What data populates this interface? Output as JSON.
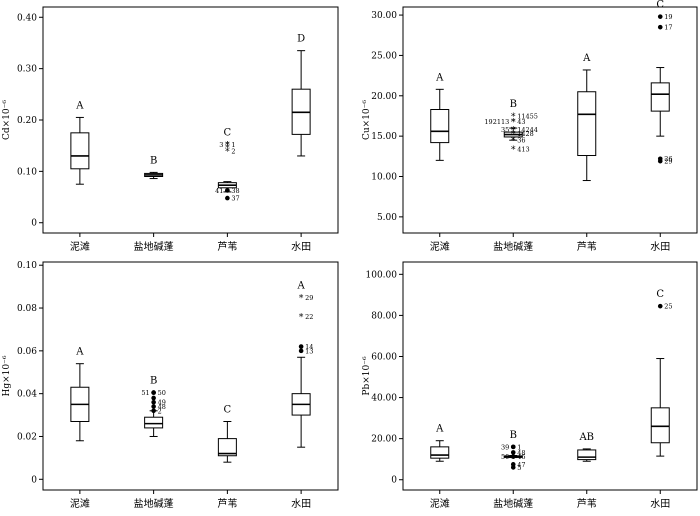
{
  "chart_data": [
    {
      "type": "box",
      "ylabel": "Cd×10⁻⁶",
      "ylim": [
        -0.02,
        0.42
      ],
      "yticks": [
        "0",
        "0.10",
        "0.20",
        "0.30",
        "0.40"
      ],
      "ytick_values": [
        0,
        0.1,
        0.2,
        0.3,
        0.4
      ],
      "categories": [
        "泥滩",
        "盐地碱蓬",
        "芦苇",
        "水田"
      ],
      "boxes": [
        {
          "group": "泥滩",
          "min": 0.075,
          "q1": 0.105,
          "median": 0.13,
          "q3": 0.175,
          "max": 0.205,
          "letter": "A"
        },
        {
          "group": "盐地碱蓬",
          "min": 0.086,
          "q1": 0.09,
          "median": 0.093,
          "q3": 0.096,
          "max": 0.098,
          "letter": "B"
        },
        {
          "group": "芦苇",
          "min": 0.06,
          "q1": 0.068,
          "median": 0.073,
          "q3": 0.078,
          "max": 0.08,
          "letter": "C"
        },
        {
          "group": "水田",
          "min": 0.13,
          "q1": 0.172,
          "median": 0.215,
          "q3": 0.26,
          "max": 0.335,
          "letter": "D"
        }
      ],
      "outliers": [
        {
          "group": "芦苇",
          "value": 0.152,
          "kind": "star",
          "label": "1"
        },
        {
          "group": "芦苇",
          "value": 0.152,
          "kind": "star",
          "label": "3"
        },
        {
          "group": "芦苇",
          "value": 0.146,
          "kind": "star",
          "label": ""
        },
        {
          "group": "芦苇",
          "value": 0.14,
          "kind": "star",
          "label": "2"
        },
        {
          "group": "芦苇",
          "value": 0.063,
          "kind": "dot",
          "label": "38"
        },
        {
          "group": "芦苇",
          "value": 0.063,
          "kind": "dot",
          "label": "41"
        },
        {
          "group": "芦苇",
          "value": 0.048,
          "kind": "dot",
          "label": "37"
        }
      ]
    },
    {
      "type": "box",
      "ylabel": "Cu×10⁻⁶",
      "ylim": [
        3.0,
        31.0
      ],
      "yticks": [
        "5.00",
        "10.00",
        "15.00",
        "20.00",
        "25.00",
        "30.00"
      ],
      "ytick_values": [
        5,
        10,
        15,
        20,
        25,
        30
      ],
      "categories": [
        "泥滩",
        "盐地碱蓬",
        "芦苇",
        "水田"
      ],
      "boxes": [
        {
          "group": "泥滩",
          "min": 12.0,
          "q1": 14.2,
          "median": 15.6,
          "q3": 18.3,
          "max": 20.8,
          "letter": "A"
        },
        {
          "group": "盐地碱蓬",
          "min": 14.5,
          "q1": 14.9,
          "median": 15.2,
          "q3": 15.5,
          "max": 16.0,
          "letter": "B"
        },
        {
          "group": "芦苇",
          "min": 9.5,
          "q1": 12.6,
          "median": 17.7,
          "q3": 20.5,
          "max": 23.2,
          "letter": "A"
        },
        {
          "group": "水田",
          "min": 15.0,
          "q1": 18.1,
          "median": 20.2,
          "q3": 21.6,
          "max": 23.5,
          "letter": "C"
        }
      ],
      "outliers": [
        {
          "group": "盐地碱蓬",
          "value": 17.5,
          "kind": "star",
          "label": "11455"
        },
        {
          "group": "盐地碱蓬",
          "value": 16.8,
          "kind": "star",
          "label": "43"
        },
        {
          "group": "盐地碱蓬",
          "value": 16.8,
          "kind": "star",
          "label": "192113"
        },
        {
          "group": "盐地碱蓬",
          "value": 15.8,
          "kind": "star",
          "label": "14244"
        },
        {
          "group": "盐地碱蓬",
          "value": 15.8,
          "kind": "star",
          "label": "35"
        },
        {
          "group": "盐地碱蓬",
          "value": 15.3,
          "kind": "star",
          "label": "1428"
        },
        {
          "group": "盐地碱蓬",
          "value": 14.5,
          "kind": "star",
          "label": "36"
        },
        {
          "group": "盐地碱蓬",
          "value": 13.4,
          "kind": "star",
          "label": "413"
        },
        {
          "group": "水田",
          "value": 29.8,
          "kind": "dot",
          "label": "19"
        },
        {
          "group": "水田",
          "value": 28.5,
          "kind": "dot",
          "label": "17"
        },
        {
          "group": "水田",
          "value": 12.2,
          "kind": "dot",
          "label": "26"
        },
        {
          "group": "水田",
          "value": 11.9,
          "kind": "dot",
          "label": "29"
        }
      ]
    },
    {
      "type": "box",
      "ylabel": "Hg×10⁻⁶",
      "ylim": [
        -0.005,
        0.1015
      ],
      "yticks": [
        "0",
        "0.02",
        "0.04",
        "0.06",
        "0.08",
        "0.10"
      ],
      "ytick_values": [
        0,
        0.02,
        0.04,
        0.06,
        0.08,
        0.1
      ],
      "categories": [
        "泥滩",
        "盐地碱蓬",
        "芦苇",
        "水田"
      ],
      "boxes": [
        {
          "group": "泥滩",
          "min": 0.018,
          "q1": 0.027,
          "median": 0.035,
          "q3": 0.043,
          "max": 0.054,
          "letter": "A"
        },
        {
          "group": "盐地碱蓬",
          "min": 0.02,
          "q1": 0.024,
          "median": 0.026,
          "q3": 0.029,
          "max": 0.032,
          "letter": "B"
        },
        {
          "group": "芦苇",
          "min": 0.008,
          "q1": 0.011,
          "median": 0.012,
          "q3": 0.019,
          "max": 0.027,
          "letter": "C"
        },
        {
          "group": "水田",
          "min": 0.015,
          "q1": 0.03,
          "median": 0.035,
          "q3": 0.04,
          "max": 0.057,
          "letter": "A"
        }
      ],
      "outliers": [
        {
          "group": "盐地碱蓬",
          "value": 0.0405,
          "kind": "dot",
          "label": "50"
        },
        {
          "group": "盐地碱蓬",
          "value": 0.0405,
          "kind": "dot",
          "label": "51"
        },
        {
          "group": "盐地碱蓬",
          "value": 0.038,
          "kind": "dot",
          "label": ""
        },
        {
          "group": "盐地碱蓬",
          "value": 0.036,
          "kind": "dot",
          "label": "49"
        },
        {
          "group": "盐地碱蓬",
          "value": 0.034,
          "kind": "dot",
          "label": "48"
        },
        {
          "group": "盐地碱蓬",
          "value": 0.032,
          "kind": "dot",
          "label": "2"
        },
        {
          "group": "水田",
          "value": 0.085,
          "kind": "star",
          "label": "29"
        },
        {
          "group": "水田",
          "value": 0.076,
          "kind": "star",
          "label": "22"
        },
        {
          "group": "水田",
          "value": 0.062,
          "kind": "dot",
          "label": "14"
        },
        {
          "group": "水田",
          "value": 0.06,
          "kind": "dot",
          "label": "13"
        }
      ]
    },
    {
      "type": "box",
      "ylabel": "Pb×10⁻⁶",
      "ylim": [
        -5.0,
        106.0
      ],
      "yticks": [
        "0",
        "20.00",
        "40.00",
        "60.00",
        "80.00",
        "100.00"
      ],
      "ytick_values": [
        0,
        20,
        40,
        60,
        80,
        100
      ],
      "categories": [
        "泥滩",
        "盐地碱蓬",
        "芦苇",
        "水田"
      ],
      "boxes": [
        {
          "group": "泥滩",
          "min": 9.0,
          "q1": 10.5,
          "median": 12.0,
          "q3": 16.0,
          "max": 19.0,
          "letter": "A"
        },
        {
          "group": "盐地碱蓬",
          "min": 10.8,
          "q1": 11.0,
          "median": 11.3,
          "q3": 11.6,
          "max": 11.8,
          "letter": "B"
        },
        {
          "group": "芦苇",
          "min": 9.0,
          "q1": 9.8,
          "median": 11.0,
          "q3": 14.5,
          "max": 15.0,
          "letter": "AB"
        },
        {
          "group": "水田",
          "min": 11.5,
          "q1": 18.0,
          "median": 26.0,
          "q3": 35.0,
          "max": 59.0,
          "letter": "C"
        }
      ],
      "outliers": [
        {
          "group": "盐地碱蓬",
          "value": 16.0,
          "kind": "dot",
          "label": "1"
        },
        {
          "group": "盐地碱蓬",
          "value": 16.0,
          "kind": "dot",
          "label": "39"
        },
        {
          "group": "盐地碱蓬",
          "value": 13.3,
          "kind": "dot",
          "label": "48"
        },
        {
          "group": "盐地碱蓬",
          "value": 11.3,
          "kind": "dot",
          "label": "46"
        },
        {
          "group": "盐地碱蓬",
          "value": 11.3,
          "kind": "dot",
          "label": "50"
        },
        {
          "group": "盐地碱蓬",
          "value": 7.5,
          "kind": "dot",
          "label": "47"
        },
        {
          "group": "盐地碱蓬",
          "value": 6.0,
          "kind": "dot",
          "label": "5"
        },
        {
          "group": "水田",
          "value": 84.5,
          "kind": "dot",
          "label": "25"
        }
      ]
    }
  ]
}
